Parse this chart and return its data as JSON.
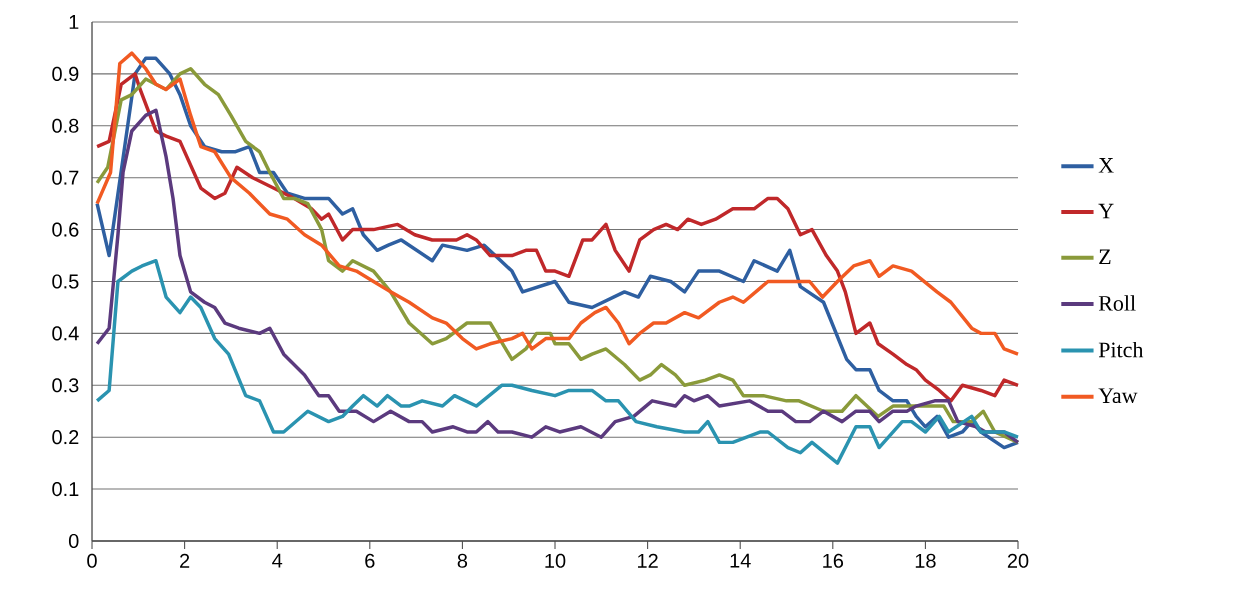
{
  "chart_data": {
    "type": "line",
    "xlim": [
      0,
      20
    ],
    "ylim": [
      0,
      1
    ],
    "xticks": [
      0,
      2,
      4,
      6,
      8,
      10,
      12,
      14,
      16,
      18,
      20
    ],
    "yticks": [
      0,
      0.1,
      0.2,
      0.3,
      0.4,
      0.5,
      0.6,
      0.7,
      0.8,
      0.9,
      1
    ],
    "grid": "y",
    "legend": "right",
    "series": [
      {
        "name": "X",
        "color": "#2e5fa1",
        "x": [
          0.11,
          0.37,
          0.93,
          1.16,
          1.38,
          1.68,
          1.9,
          2.13,
          2.43,
          2.8,
          3.1,
          3.4,
          3.62,
          3.92,
          4.22,
          4.59,
          5.11,
          5.41,
          5.63,
          5.86,
          6.16,
          6.4,
          6.68,
          7.35,
          7.57,
          8.1,
          8.47,
          9.07,
          9.3,
          10.0,
          10.3,
          10.8,
          11.5,
          11.8,
          12.06,
          12.5,
          12.8,
          13.1,
          13.55,
          14.07,
          14.3,
          14.8,
          15.07,
          15.3,
          15.8,
          16.3,
          16.5,
          16.8,
          17.0,
          17.3,
          17.6,
          17.8,
          18.0,
          18.25,
          18.5,
          18.8,
          19.0,
          19.2,
          19.7,
          20.0
        ],
        "values": [
          0.65,
          0.55,
          0.9,
          0.93,
          0.93,
          0.9,
          0.86,
          0.8,
          0.76,
          0.75,
          0.75,
          0.76,
          0.71,
          0.71,
          0.67,
          0.66,
          0.66,
          0.63,
          0.64,
          0.59,
          0.56,
          0.57,
          0.58,
          0.54,
          0.57,
          0.56,
          0.57,
          0.52,
          0.48,
          0.5,
          0.46,
          0.45,
          0.48,
          0.47,
          0.51,
          0.5,
          0.48,
          0.52,
          0.52,
          0.5,
          0.54,
          0.52,
          0.56,
          0.49,
          0.46,
          0.35,
          0.33,
          0.33,
          0.29,
          0.27,
          0.27,
          0.24,
          0.22,
          0.24,
          0.2,
          0.21,
          0.23,
          0.21,
          0.18,
          0.19
        ]
      },
      {
        "name": "Y",
        "color": "#c0282a",
        "x": [
          0.11,
          0.37,
          0.63,
          0.93,
          1.04,
          1.38,
          1.6,
          1.9,
          2.35,
          2.65,
          2.87,
          3.13,
          3.47,
          3.92,
          4.37,
          4.74,
          4.96,
          5.11,
          5.41,
          5.63,
          6.08,
          6.6,
          6.97,
          7.35,
          7.72,
          7.87,
          8.1,
          8.3,
          8.6,
          9.07,
          9.37,
          9.6,
          9.8,
          10.0,
          10.3,
          10.6,
          10.8,
          11.1,
          11.3,
          11.6,
          11.83,
          12.13,
          12.4,
          12.65,
          12.87,
          13.16,
          13.47,
          13.84,
          14.3,
          14.6,
          14.8,
          15.03,
          15.3,
          15.55,
          15.86,
          16.1,
          16.27,
          16.5,
          16.8,
          16.98,
          17.3,
          17.6,
          17.8,
          18.0,
          18.3,
          18.55,
          18.8,
          19.2,
          19.5,
          19.7,
          20.0
        ],
        "values": [
          0.76,
          0.77,
          0.88,
          0.9,
          0.87,
          0.79,
          0.78,
          0.77,
          0.68,
          0.66,
          0.67,
          0.72,
          0.7,
          0.68,
          0.66,
          0.64,
          0.62,
          0.63,
          0.58,
          0.6,
          0.6,
          0.61,
          0.59,
          0.58,
          0.58,
          0.58,
          0.59,
          0.58,
          0.55,
          0.55,
          0.56,
          0.56,
          0.52,
          0.52,
          0.51,
          0.58,
          0.58,
          0.61,
          0.56,
          0.52,
          0.58,
          0.6,
          0.61,
          0.6,
          0.62,
          0.61,
          0.62,
          0.64,
          0.64,
          0.66,
          0.66,
          0.64,
          0.59,
          0.6,
          0.55,
          0.52,
          0.48,
          0.4,
          0.42,
          0.38,
          0.36,
          0.34,
          0.33,
          0.31,
          0.29,
          0.27,
          0.3,
          0.29,
          0.28,
          0.31,
          0.3
        ]
      },
      {
        "name": "Z",
        "color": "#8a9a3a",
        "x": [
          0.11,
          0.34,
          0.63,
          0.86,
          1.16,
          1.38,
          1.6,
          1.9,
          2.13,
          2.43,
          2.73,
          3.0,
          3.32,
          3.62,
          3.84,
          4.14,
          4.37,
          4.66,
          4.96,
          5.11,
          5.41,
          5.63,
          6.08,
          6.45,
          6.85,
          7.35,
          7.65,
          8.1,
          8.3,
          8.6,
          9.07,
          9.37,
          9.6,
          9.9,
          10.0,
          10.3,
          10.56,
          10.8,
          11.1,
          11.5,
          11.83,
          12.06,
          12.3,
          12.6,
          12.8,
          13.25,
          13.55,
          13.84,
          14.07,
          14.5,
          15.0,
          15.27,
          15.8,
          16.2,
          16.5,
          16.98,
          17.3,
          17.8,
          18.4,
          18.6,
          19.0,
          19.25,
          19.5,
          20.0
        ],
        "values": [
          0.69,
          0.72,
          0.85,
          0.86,
          0.89,
          0.88,
          0.87,
          0.9,
          0.91,
          0.88,
          0.86,
          0.82,
          0.77,
          0.75,
          0.71,
          0.66,
          0.66,
          0.65,
          0.6,
          0.54,
          0.52,
          0.54,
          0.52,
          0.48,
          0.42,
          0.38,
          0.39,
          0.42,
          0.42,
          0.42,
          0.35,
          0.37,
          0.4,
          0.4,
          0.38,
          0.38,
          0.35,
          0.36,
          0.37,
          0.34,
          0.31,
          0.32,
          0.34,
          0.32,
          0.3,
          0.31,
          0.32,
          0.31,
          0.28,
          0.28,
          0.27,
          0.27,
          0.25,
          0.25,
          0.28,
          0.24,
          0.26,
          0.26,
          0.26,
          0.23,
          0.23,
          0.25,
          0.21,
          0.19
        ]
      },
      {
        "name": "Roll",
        "color": "#5b3a7e",
        "x": [
          0.11,
          0.37,
          0.56,
          0.67,
          0.86,
          1.16,
          1.38,
          1.6,
          1.75,
          1.9,
          2.13,
          2.43,
          2.65,
          2.87,
          3.17,
          3.62,
          3.84,
          4.14,
          4.59,
          4.9,
          5.11,
          5.34,
          5.71,
          6.08,
          6.45,
          6.85,
          7.13,
          7.35,
          7.8,
          8.1,
          8.3,
          8.55,
          8.77,
          9.07,
          9.5,
          9.8,
          10.1,
          10.56,
          11.0,
          11.3,
          11.7,
          12.1,
          12.6,
          12.8,
          13.0,
          13.3,
          13.55,
          14.2,
          14.6,
          14.9,
          15.2,
          15.5,
          15.8,
          16.2,
          16.5,
          16.8,
          17.0,
          17.3,
          17.6,
          17.8,
          18.2,
          18.5,
          18.7,
          19.1,
          19.3,
          19.7,
          20.0
        ],
        "values": [
          0.38,
          0.41,
          0.59,
          0.71,
          0.79,
          0.82,
          0.83,
          0.74,
          0.66,
          0.55,
          0.48,
          0.46,
          0.45,
          0.42,
          0.41,
          0.4,
          0.41,
          0.36,
          0.32,
          0.28,
          0.28,
          0.25,
          0.25,
          0.23,
          0.25,
          0.23,
          0.23,
          0.21,
          0.22,
          0.21,
          0.21,
          0.23,
          0.21,
          0.21,
          0.2,
          0.22,
          0.21,
          0.22,
          0.2,
          0.23,
          0.24,
          0.27,
          0.26,
          0.28,
          0.27,
          0.28,
          0.26,
          0.27,
          0.25,
          0.25,
          0.23,
          0.23,
          0.25,
          0.23,
          0.25,
          0.25,
          0.23,
          0.25,
          0.25,
          0.26,
          0.27,
          0.27,
          0.23,
          0.22,
          0.21,
          0.21,
          0.19
        ]
      },
      {
        "name": "Pitch",
        "color": "#2a93b0",
        "x": [
          0.11,
          0.37,
          0.56,
          0.86,
          1.08,
          1.38,
          1.6,
          1.9,
          2.13,
          2.35,
          2.65,
          2.95,
          3.32,
          3.62,
          3.92,
          4.14,
          4.66,
          5.11,
          5.41,
          5.63,
          5.86,
          6.16,
          6.38,
          6.68,
          6.85,
          7.13,
          7.57,
          7.83,
          8.3,
          8.85,
          9.07,
          9.5,
          10.0,
          10.3,
          10.8,
          11.1,
          11.37,
          11.75,
          12.2,
          12.8,
          13.1,
          13.3,
          13.55,
          13.84,
          14.44,
          14.6,
          15.03,
          15.3,
          15.55,
          16.1,
          16.5,
          16.8,
          17.0,
          17.5,
          17.7,
          18.0,
          18.3,
          18.5,
          19.0,
          19.2,
          19.7,
          20.0
        ],
        "values": [
          0.27,
          0.29,
          0.5,
          0.52,
          0.53,
          0.54,
          0.47,
          0.44,
          0.47,
          0.45,
          0.39,
          0.36,
          0.28,
          0.27,
          0.21,
          0.21,
          0.25,
          0.23,
          0.24,
          0.26,
          0.28,
          0.26,
          0.28,
          0.26,
          0.26,
          0.27,
          0.26,
          0.28,
          0.26,
          0.3,
          0.3,
          0.29,
          0.28,
          0.29,
          0.29,
          0.27,
          0.27,
          0.23,
          0.22,
          0.21,
          0.21,
          0.23,
          0.19,
          0.19,
          0.21,
          0.21,
          0.18,
          0.17,
          0.19,
          0.15,
          0.22,
          0.22,
          0.18,
          0.23,
          0.23,
          0.21,
          0.24,
          0.21,
          0.24,
          0.21,
          0.21,
          0.2
        ]
      },
      {
        "name": "Yaw",
        "color": "#f15a22",
        "x": [
          0.11,
          0.4,
          0.6,
          0.86,
          1.16,
          1.38,
          1.6,
          1.9,
          2.13,
          2.35,
          2.65,
          3.0,
          3.4,
          3.84,
          4.22,
          4.59,
          4.96,
          5.34,
          5.71,
          6.08,
          6.45,
          6.85,
          7.35,
          7.65,
          8.0,
          8.3,
          8.6,
          9.07,
          9.3,
          9.5,
          9.8,
          10.3,
          10.56,
          10.86,
          11.1,
          11.37,
          11.6,
          11.83,
          12.13,
          12.4,
          12.8,
          13.1,
          13.55,
          13.84,
          14.07,
          14.6,
          15.03,
          15.5,
          15.78,
          16.1,
          16.45,
          16.8,
          17.0,
          17.3,
          17.7,
          18.25,
          18.55,
          19.0,
          19.2,
          19.5,
          19.7,
          20.0
        ],
        "values": [
          0.65,
          0.71,
          0.92,
          0.94,
          0.91,
          0.88,
          0.87,
          0.89,
          0.82,
          0.76,
          0.75,
          0.7,
          0.67,
          0.63,
          0.62,
          0.59,
          0.57,
          0.53,
          0.52,
          0.5,
          0.48,
          0.46,
          0.43,
          0.42,
          0.39,
          0.37,
          0.38,
          0.39,
          0.4,
          0.37,
          0.39,
          0.39,
          0.42,
          0.44,
          0.45,
          0.42,
          0.38,
          0.4,
          0.42,
          0.42,
          0.44,
          0.43,
          0.46,
          0.47,
          0.46,
          0.5,
          0.5,
          0.5,
          0.47,
          0.5,
          0.53,
          0.54,
          0.51,
          0.53,
          0.52,
          0.48,
          0.46,
          0.41,
          0.4,
          0.4,
          0.37,
          0.36
        ]
      }
    ]
  }
}
